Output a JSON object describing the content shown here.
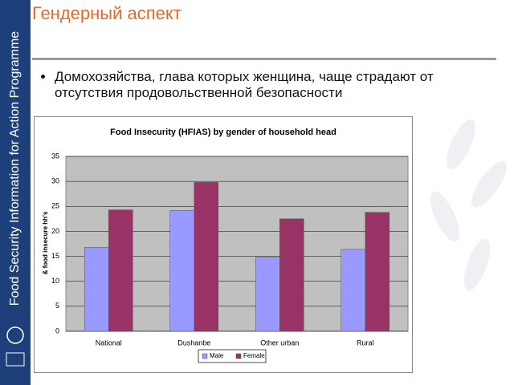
{
  "slide": {
    "title": "Гендерный аспект",
    "bullet": "Домохозяйства, глава которых женщина, чаще страдают от отсутствия продовольственной безопасности",
    "sidebar": "Food Security Information for Action Programme"
  },
  "chart_data": {
    "type": "bar",
    "title": "Food Insecurity (HFIAS) by gender of household head",
    "y_label": "& food insecure hh's",
    "categories": [
      "National",
      "Dushanbe",
      "Other urban",
      "Rural"
    ],
    "series": [
      {
        "name": "Male",
        "color": "#9999ff",
        "values": [
          16.8,
          24.2,
          14.8,
          16.4
        ]
      },
      {
        "name": "Female",
        "color": "#993366",
        "values": [
          24.3,
          29.8,
          22.5,
          23.8
        ]
      }
    ],
    "ylim": [
      0,
      35
    ],
    "yticks": [
      0,
      5,
      10,
      15,
      20,
      25,
      30,
      35
    ],
    "grid": true,
    "legend": "bottom"
  }
}
